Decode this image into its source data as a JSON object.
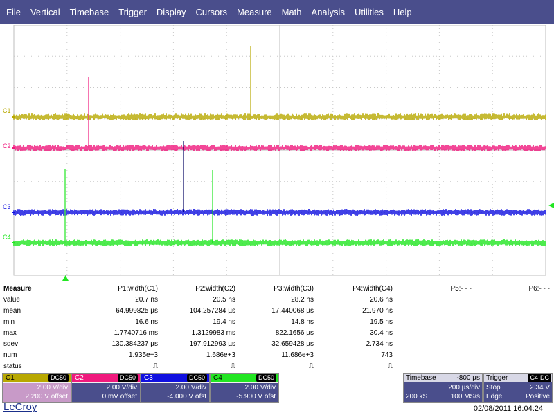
{
  "menu": [
    "File",
    "Vertical",
    "Timebase",
    "Trigger",
    "Display",
    "Cursors",
    "Measure",
    "Math",
    "Analysis",
    "Utilities",
    "Help"
  ],
  "traces": [
    {
      "label": "C1",
      "color": "#b8a800"
    },
    {
      "label": "C2",
      "color": "#f0197d"
    },
    {
      "label": "C3",
      "color": "#1010e0"
    },
    {
      "label": "C4",
      "color": "#22e622"
    }
  ],
  "measure": {
    "title": "Measure",
    "headers": [
      "P1:width(C1)",
      "P2:width(C2)",
      "P3:width(C3)",
      "P4:width(C4)",
      "P5:- - -",
      "P6:- - -"
    ],
    "rows": [
      {
        "label": "value",
        "cells": [
          "20.7 ns",
          "20.5 ns",
          "28.2 ns",
          "20.6 ns"
        ]
      },
      {
        "label": "mean",
        "cells": [
          "64.999825 µs",
          "104.257284 µs",
          "17.440068 µs",
          "21.970 ns"
        ]
      },
      {
        "label": "min",
        "cells": [
          "16.6 ns",
          "19.4 ns",
          "14.8 ns",
          "19.5 ns"
        ]
      },
      {
        "label": "max",
        "cells": [
          "1.7740716 ms",
          "1.3129983 ms",
          "822.1656 µs",
          "30.4 ns"
        ]
      },
      {
        "label": "sdev",
        "cells": [
          "130.384237 µs",
          "197.912993 µs",
          "32.659428 µs",
          "2.734 ns"
        ]
      },
      {
        "label": "num",
        "cells": [
          "1.935e+3",
          "1.686e+3",
          "11.686e+3",
          "743"
        ]
      },
      {
        "label": "status",
        "cells": [
          "⎍",
          "⎍",
          "⎍",
          "⎍"
        ]
      }
    ]
  },
  "channels": [
    {
      "name": "C1",
      "coupling": "DC50",
      "vdiv": "2.00 V/div",
      "offset": "2.200 V offset",
      "color": "#b8a800",
      "body_color": "#c89ac8"
    },
    {
      "name": "C2",
      "coupling": "DC50",
      "vdiv": "2.00 V/div",
      "offset": "0 mV offset",
      "color": "#f0197d",
      "body_color": "#4a4e8c"
    },
    {
      "name": "C3",
      "coupling": "DC50",
      "vdiv": "2.00 V/div",
      "offset": "-4.000 V ofst",
      "color": "#1010e0",
      "body_color": "#4a4e8c"
    },
    {
      "name": "C4",
      "coupling": "DC50",
      "vdiv": "2.00 V/div",
      "offset": "-5.900 V ofst",
      "color": "#22e622",
      "body_color": "#4a4e8c"
    }
  ],
  "timebase": {
    "label": "Timebase",
    "delay": "-800 µs",
    "tdiv": "200 µs/div",
    "samples": "200 kS",
    "rate": "100 MS/s"
  },
  "trigger": {
    "label": "Trigger",
    "source": "C4",
    "coupling": "DC",
    "mode": "Stop",
    "level": "2.34 V",
    "type": "Edge",
    "slope": "Positive"
  },
  "footer": {
    "brand": "LeCroy",
    "datetime": "02/08/2011 16:04:24"
  }
}
